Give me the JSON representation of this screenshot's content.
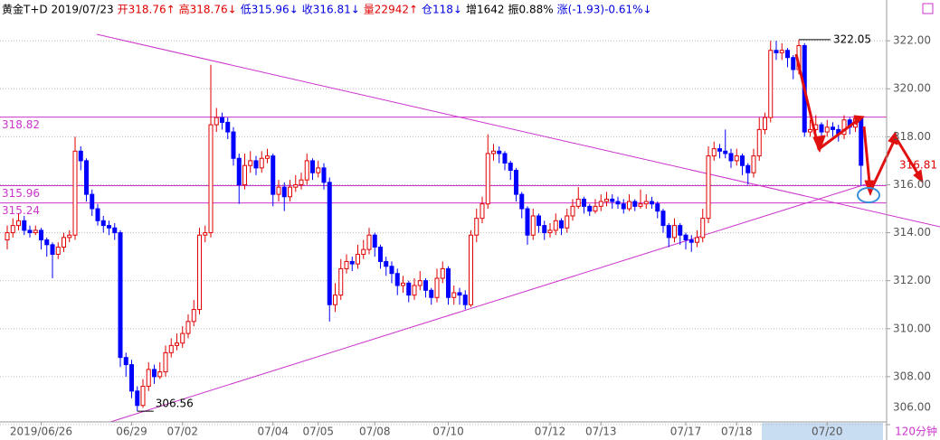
{
  "header": [
    {
      "text": "黄金T+D 2019/07/23",
      "color": "#000000"
    },
    {
      "text": "开318.76↑",
      "color": "#e00000"
    },
    {
      "text": "高318.76↓",
      "color": "#e00000"
    },
    {
      "text": "低315.96↓",
      "color": "#0000e0"
    },
    {
      "text": "收316.81↓",
      "color": "#0000e0"
    },
    {
      "text": "量22942↑",
      "color": "#e00000"
    },
    {
      "text": "仓118↓",
      "color": "#0000e0"
    },
    {
      "text": "增1642",
      "color": "#000000"
    },
    {
      "text": "振0.88%",
      "color": "#000000"
    },
    {
      "text": "涨(-1.93)-0.61%↓",
      "color": "#0000e0"
    }
  ],
  "chart_data": {
    "type": "candlestick",
    "period_label": "120分钟",
    "up_color": "#e00000",
    "down_color": "#0000ff",
    "line_color": "#cc33cc",
    "grid": true,
    "ylim": [
      306,
      323.7
    ],
    "yticks": [
      {
        "value": 306,
        "label": "306.00"
      },
      {
        "value": 308,
        "label": "308.00"
      },
      {
        "value": 310,
        "label": "310.00"
      },
      {
        "value": 312,
        "label": "312.00"
      },
      {
        "value": 314,
        "label": "314.00"
      },
      {
        "value": 316,
        "label": "316.00"
      },
      {
        "value": 318,
        "label": "318.00"
      },
      {
        "value": 320,
        "label": "320.00"
      },
      {
        "value": 322,
        "label": "322.00"
      }
    ],
    "hlines": [
      318.82,
      315.96,
      315.24
    ],
    "categories": [
      null,
      null,
      null,
      null,
      null,
      null,
      "2019/06/26",
      null,
      null,
      null,
      null,
      null,
      null,
      null,
      null,
      null,
      null,
      null,
      null,
      null,
      null,
      null,
      "06/29",
      null,
      null,
      null,
      null,
      null,
      null,
      null,
      null,
      "07/02",
      null,
      null,
      null,
      null,
      null,
      null,
      null,
      null,
      null,
      null,
      null,
      null,
      null,
      null,
      null,
      "07/04",
      null,
      null,
      null,
      null,
      null,
      null,
      null,
      "07/05",
      null,
      null,
      null,
      null,
      null,
      null,
      null,
      null,
      null,
      "07/08",
      null,
      null,
      null,
      null,
      null,
      null,
      null,
      null,
      null,
      null,
      null,
      null,
      "07/10",
      null,
      null,
      null,
      null,
      null,
      null,
      null,
      null,
      null,
      null,
      null,
      null,
      null,
      null,
      null,
      null,
      null,
      "07/12",
      null,
      null,
      null,
      null,
      null,
      null,
      null,
      null,
      "07/13",
      null,
      null,
      null,
      null,
      null,
      null,
      null,
      null,
      null,
      null,
      null,
      null,
      null,
      null,
      "07/17",
      null,
      null,
      null,
      null,
      null,
      null,
      null,
      null,
      "07/18",
      null,
      null,
      null,
      null,
      null,
      null,
      null,
      null,
      null,
      null,
      null,
      null,
      null,
      null,
      null,
      "07/20",
      null,
      null,
      null,
      null,
      null,
      null
    ],
    "open": [
      313.7,
      314.0,
      314.3,
      314.5,
      314.1,
      314.0,
      314.1,
      313.7,
      313.5,
      313.1,
      313.4,
      313.8,
      313.9,
      317.4,
      317.0,
      315.6,
      315.0,
      314.5,
      314.3,
      314.2,
      314.0,
      308.8,
      308.5,
      307.4,
      306.8,
      307.6,
      308.3,
      308.0,
      308.2,
      309.0,
      309.3,
      309.4,
      309.8,
      310.3,
      310.8,
      313.9,
      314.0,
      318.5,
      318.8,
      318.6,
      318.2,
      317.1,
      316.0,
      316.8,
      317.0,
      316.7,
      317.1,
      317.2,
      315.6,
      315.9,
      315.5,
      315.9,
      316.0,
      316.2,
      317.0,
      316.5,
      316.7,
      316.1,
      311.0,
      311.4,
      312.5,
      312.8,
      312.7,
      313.1,
      313.3,
      313.9,
      313.4,
      312.8,
      312.6,
      312.3,
      311.8,
      311.9,
      311.4,
      311.8,
      312.0,
      311.6,
      311.3,
      312.1,
      312.5,
      311.3,
      311.5,
      311.4,
      311.0,
      313.9,
      314.6,
      315.2,
      317.3,
      317.4,
      317.3,
      316.9,
      316.6,
      315.6,
      315.0,
      313.9,
      314.7,
      314.3,
      314.0,
      314.1,
      314.5,
      314.2,
      314.7,
      315.1,
      315.4,
      315.1,
      314.9,
      315.1,
      315.3,
      315.4,
      315.3,
      315.2,
      315.0,
      315.3,
      315.1,
      315.2,
      315.3,
      315.2,
      314.9,
      314.3,
      313.8,
      314.3,
      313.9,
      313.7,
      313.6,
      313.8,
      314.6,
      317.2,
      317.5,
      317.4,
      317.3,
      317.0,
      317.2,
      316.8,
      316.5,
      317.2,
      318.3,
      318.8,
      321.6,
      321.5,
      321.6,
      321.3,
      320.8,
      321.8,
      318.2,
      318.3,
      318.5,
      318.2,
      318.4,
      318.3,
      318.1,
      318.7,
      318.4,
      318.76
    ],
    "high": [
      314.3,
      314.6,
      314.8,
      314.7,
      314.3,
      314.3,
      314.2,
      313.8,
      313.6,
      313.6,
      314.0,
      314.1,
      318.0,
      317.6,
      317.1,
      315.8,
      315.2,
      314.7,
      314.5,
      314.4,
      314.1,
      309.0,
      308.7,
      307.6,
      307.9,
      308.6,
      308.5,
      308.6,
      309.3,
      309.6,
      309.8,
      310.1,
      310.6,
      311.2,
      314.2,
      314.3,
      321.0,
      319.2,
      319.0,
      318.8,
      318.4,
      317.3,
      317.3,
      317.4,
      317.2,
      317.4,
      317.5,
      317.3,
      316.2,
      316.1,
      316.2,
      316.4,
      316.5,
      317.3,
      317.1,
      317.0,
      316.9,
      316.3,
      311.9,
      312.9,
      313.1,
      313.0,
      313.5,
      313.7,
      314.2,
      314.0,
      313.5,
      313.0,
      312.8,
      312.5,
      312.2,
      312.0,
      312.1,
      312.4,
      312.1,
      311.7,
      312.5,
      312.8,
      312.6,
      311.8,
      311.7,
      311.6,
      314.1,
      315.0,
      315.5,
      318.1,
      317.7,
      317.6,
      317.4,
      317.0,
      316.7,
      315.7,
      315.1,
      315.0,
      314.8,
      314.5,
      314.4,
      314.8,
      314.6,
      315.0,
      315.4,
      315.9,
      315.5,
      315.2,
      315.4,
      315.6,
      315.7,
      315.6,
      315.5,
      315.4,
      315.6,
      315.4,
      315.8,
      315.6,
      315.5,
      315.3,
      315.0,
      314.4,
      314.6,
      314.4,
      314.0,
      313.9,
      314.1,
      315.0,
      317.6,
      317.8,
      317.7,
      318.3,
      317.5,
      317.5,
      317.3,
      316.9,
      317.5,
      318.8,
      319.0,
      322.0,
      322.0,
      321.9,
      321.7,
      321.4,
      322.05,
      321.9,
      318.7,
      318.9,
      318.6,
      318.7,
      318.6,
      318.5,
      318.9,
      318.8,
      318.9,
      318.76
    ],
    "low": [
      313.3,
      313.8,
      314.1,
      313.9,
      313.8,
      313.9,
      313.3,
      313.0,
      312.1,
      312.9,
      313.2,
      313.6,
      313.7,
      316.6,
      315.3,
      314.7,
      314.3,
      314.0,
      313.9,
      313.7,
      308.4,
      308.0,
      307.1,
      306.56,
      306.7,
      307.4,
      307.7,
      307.9,
      308.0,
      308.8,
      309.1,
      309.2,
      309.6,
      310.1,
      310.6,
      313.6,
      313.8,
      318.2,
      318.3,
      317.9,
      316.8,
      315.2,
      315.8,
      316.5,
      316.4,
      316.5,
      316.9,
      315.1,
      315.3,
      314.9,
      315.3,
      315.7,
      315.8,
      316.0,
      316.2,
      316.3,
      315.8,
      310.3,
      310.7,
      311.2,
      312.3,
      312.4,
      312.5,
      312.9,
      313.1,
      313.0,
      312.5,
      312.2,
      311.9,
      311.4,
      311.5,
      311.1,
      311.2,
      311.6,
      311.3,
      311.0,
      311.1,
      311.9,
      311.0,
      311.0,
      311.0,
      310.8,
      310.9,
      313.6,
      314.4,
      315.0,
      317.0,
      316.9,
      316.6,
      316.2,
      315.3,
      314.6,
      313.5,
      313.7,
      314.0,
      313.7,
      313.8,
      313.9,
      313.9,
      314.0,
      314.5,
      315.0,
      314.8,
      314.7,
      314.8,
      314.9,
      315.1,
      315.0,
      315.0,
      314.8,
      314.9,
      314.9,
      315.0,
      315.0,
      315.0,
      314.6,
      314.0,
      313.4,
      313.6,
      313.5,
      313.3,
      313.2,
      313.4,
      313.6,
      314.4,
      317.0,
      317.1,
      317.1,
      316.7,
      316.8,
      316.4,
      316.0,
      316.3,
      317.0,
      318.1,
      318.6,
      321.2,
      321.2,
      320.9,
      320.4,
      320.6,
      318.0,
      318.0,
      318.2,
      317.9,
      318.0,
      318.0,
      317.8,
      317.9,
      318.1,
      318.2,
      315.96
    ],
    "close": [
      314.0,
      314.3,
      314.5,
      314.1,
      314.0,
      314.1,
      313.7,
      313.5,
      313.1,
      313.4,
      313.8,
      313.9,
      317.4,
      317.0,
      315.6,
      315.0,
      314.5,
      314.3,
      314.2,
      314.0,
      308.8,
      308.5,
      307.4,
      306.8,
      307.6,
      308.3,
      308.0,
      308.2,
      309.0,
      309.3,
      309.4,
      309.8,
      310.3,
      310.8,
      313.9,
      314.0,
      318.5,
      318.8,
      318.6,
      318.2,
      317.1,
      316.0,
      316.8,
      317.0,
      316.7,
      317.1,
      317.2,
      315.6,
      315.9,
      315.5,
      315.9,
      316.0,
      316.2,
      317.0,
      316.5,
      316.7,
      316.1,
      311.0,
      311.4,
      312.5,
      312.8,
      312.7,
      313.1,
      313.3,
      313.9,
      313.4,
      312.8,
      312.6,
      312.3,
      311.8,
      311.9,
      311.4,
      311.8,
      312.0,
      311.6,
      311.3,
      312.1,
      312.5,
      311.3,
      311.5,
      311.4,
      311.0,
      313.9,
      314.6,
      315.2,
      317.3,
      317.4,
      317.3,
      316.9,
      316.6,
      315.6,
      315.0,
      313.9,
      314.7,
      314.3,
      314.0,
      314.1,
      314.5,
      314.2,
      314.7,
      315.1,
      315.4,
      315.1,
      314.9,
      315.1,
      315.3,
      315.4,
      315.3,
      315.2,
      315.0,
      315.3,
      315.1,
      315.2,
      315.3,
      315.2,
      314.9,
      314.3,
      313.8,
      314.3,
      313.9,
      313.7,
      313.6,
      313.8,
      314.6,
      317.2,
      317.5,
      317.4,
      317.3,
      317.0,
      317.2,
      316.8,
      316.5,
      317.2,
      318.3,
      318.8,
      321.6,
      321.5,
      321.6,
      321.3,
      320.8,
      321.8,
      318.2,
      318.3,
      318.5,
      318.2,
      318.4,
      318.3,
      318.1,
      318.7,
      318.4,
      318.76,
      316.81
    ],
    "max_index": 140,
    "min_index": 23
  }
}
